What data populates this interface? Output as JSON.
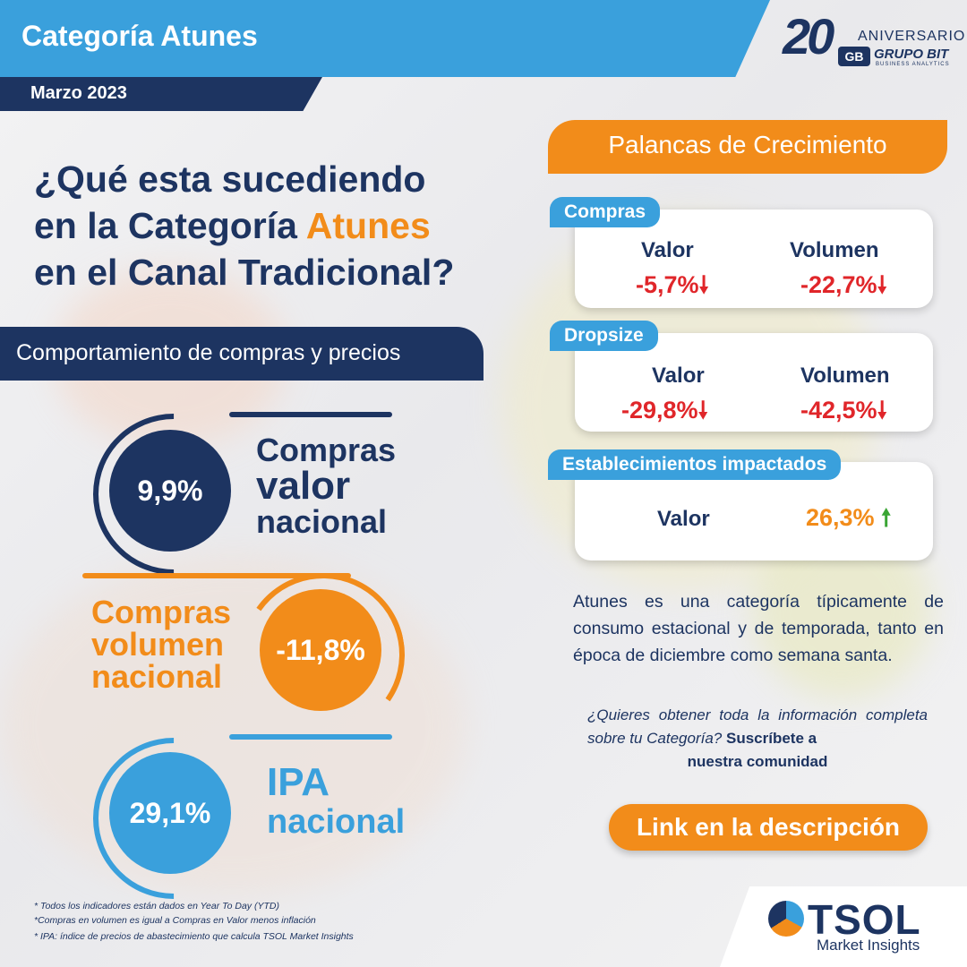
{
  "header": {
    "title": "Categoría Atunes",
    "date": "Marzo 2023",
    "logo_number": "20",
    "logo_aniversario": "ANIVERSARIO",
    "logo_initials": "GB",
    "logo_brand": "GRUPO BIT",
    "logo_brand_sub": "BUSINESS ANALYTICS"
  },
  "question": {
    "line1": "¿Qué esta sucediendo",
    "line2_prefix": "en la Categoría ",
    "line2_highlight": "Atunes",
    "line3": "en el Canal Tradicional?"
  },
  "left_section": {
    "title": "Comportamiento de compras y precios",
    "metrics": [
      {
        "value": "9,9%",
        "label_line1": "Compras",
        "label_line2": "valor",
        "label_line3": "nacional",
        "color": "#1d3461"
      },
      {
        "value": "-11,8%",
        "label_line1": "Compras",
        "label_line2": "volumen",
        "label_line3": "nacional",
        "color": "#f28c1a"
      },
      {
        "value": "29,1%",
        "label_line1": "IPA",
        "label_line2": "nacional",
        "color": "#3aa0dc"
      }
    ],
    "footnotes": [
      "* Todos los indicadores están dados en Year To Day (YTD)",
      "*Compras en volumen es igual a Compras en Valor menos inflación",
      "* IPA: índice de precios de abastecimiento que calcula TSOL Market Insights"
    ]
  },
  "right_section": {
    "title": "Palancas de Crecimiento",
    "cards": [
      {
        "tag": "Compras",
        "label1": "Valor",
        "value1": "-5,7%",
        "label2": "Volumen",
        "value2": "-22,7%"
      },
      {
        "tag": "Dropsize",
        "label1": "Valor",
        "value1": "-29,8%",
        "label2": "Volumen",
        "value2": "-42,5%"
      },
      {
        "tag": "Establecimientos impactados",
        "label1": "Valor",
        "value1": "26,3%"
      }
    ],
    "arrow_down": "🠗",
    "arrow_up": "🠕",
    "description": "Atunes es una categoría típicamente de consumo estacional y de temporada, tanto en época de diciembre como semana santa.",
    "cta_italic": "¿Quieres obtener toda la información completa sobre tu Categoría?",
    "cta_bold_1": "Suscríbete a",
    "cta_bold_2": "nuestra comunidad",
    "link_button": "Link en la descripción"
  },
  "brand": {
    "name": "TSOL",
    "sub": "Market Insights"
  },
  "colors": {
    "navy": "#1d3461",
    "blue": "#3aa0dc",
    "orange": "#f28c1a",
    "red": "#e0262a",
    "green": "#3aa534"
  }
}
